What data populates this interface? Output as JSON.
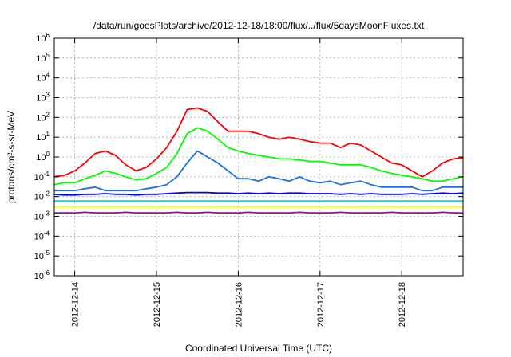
{
  "chart_data": {
    "type": "line",
    "title": "/data/run/goesPlots/archive/2012-12-18/18:00/flux/../flux/5daysMoonFluxes.txt",
    "xlabel": "Coordinated Universal Time (UTC)",
    "ylabel": "protons/cm²-s-sr-MeV",
    "yscale": "log",
    "ylim": [
      1e-06,
      1000000.0
    ],
    "xlim": [
      "2012-12-13T18:00",
      "2012-12-18T18:00"
    ],
    "grid": true,
    "legend": "none",
    "x_ticks": [
      "2012-12-14",
      "2012-12-15",
      "2012-12-16",
      "2012-12-17",
      "2012-12-18"
    ],
    "y_ticks": [
      {
        "value": 1e-06,
        "base": "10",
        "exp": "-6"
      },
      {
        "value": 1e-05,
        "base": "10",
        "exp": "-5"
      },
      {
        "value": 0.0001,
        "base": "10",
        "exp": "-4"
      },
      {
        "value": 0.001,
        "base": "10",
        "exp": "-3"
      },
      {
        "value": 0.01,
        "base": "10",
        "exp": "-2"
      },
      {
        "value": 0.1,
        "base": "10",
        "exp": "-1"
      },
      {
        "value": 1,
        "base": "10",
        "exp": "0"
      },
      {
        "value": 10,
        "base": "10",
        "exp": "1"
      },
      {
        "value": 100,
        "base": "10",
        "exp": "2"
      },
      {
        "value": 1000,
        "base": "10",
        "exp": "3"
      },
      {
        "value": 10000,
        "base": "10",
        "exp": "4"
      },
      {
        "value": 100000,
        "base": "10",
        "exp": "5"
      },
      {
        "value": 1000000,
        "base": "10",
        "exp": "6"
      }
    ],
    "x": [
      "2012-12-13T18:00",
      "2012-12-13T21:00",
      "2012-12-14T00:00",
      "2012-12-14T03:00",
      "2012-12-14T06:00",
      "2012-12-14T09:00",
      "2012-12-14T12:00",
      "2012-12-14T15:00",
      "2012-12-14T18:00",
      "2012-12-14T21:00",
      "2012-12-15T00:00",
      "2012-12-15T03:00",
      "2012-12-15T06:00",
      "2012-12-15T09:00",
      "2012-12-15T12:00",
      "2012-12-15T15:00",
      "2012-12-15T18:00",
      "2012-12-15T21:00",
      "2012-12-16T00:00",
      "2012-12-16T03:00",
      "2012-12-16T06:00",
      "2012-12-16T09:00",
      "2012-12-16T12:00",
      "2012-12-16T15:00",
      "2012-12-16T18:00",
      "2012-12-16T21:00",
      "2012-12-17T00:00",
      "2012-12-17T03:00",
      "2012-12-17T06:00",
      "2012-12-17T09:00",
      "2012-12-17T12:00",
      "2012-12-17T15:00",
      "2012-12-17T18:00",
      "2012-12-17T21:00",
      "2012-12-18T00:00",
      "2012-12-18T03:00",
      "2012-12-18T06:00",
      "2012-12-18T09:00",
      "2012-12-18T12:00",
      "2012-12-18T15:00",
      "2012-12-18T18:00"
    ],
    "series": [
      {
        "color": "#ff0000",
        "values": [
          0.1,
          0.12,
          0.2,
          0.5,
          1.5,
          2,
          1.2,
          0.4,
          0.2,
          0.3,
          0.8,
          3,
          20,
          250,
          300,
          200,
          60,
          20,
          20,
          20,
          15,
          10,
          8,
          10,
          8,
          6,
          5,
          5,
          3,
          5,
          4,
          2,
          1,
          0.5,
          0.4,
          0.2,
          0.1,
          0.2,
          0.5,
          0.8,
          0.9
        ]
      },
      {
        "color": "#00ff00",
        "values": [
          0.04,
          0.05,
          0.05,
          0.08,
          0.12,
          0.2,
          0.15,
          0.1,
          0.07,
          0.08,
          0.15,
          0.3,
          1.5,
          15,
          30,
          20,
          8,
          3,
          2,
          1.5,
          1.2,
          1,
          0.8,
          0.8,
          0.7,
          0.6,
          0.6,
          0.5,
          0.4,
          0.4,
          0.4,
          0.3,
          0.2,
          0.15,
          0.12,
          0.1,
          0.08,
          0.06,
          0.06,
          0.08,
          0.1
        ]
      },
      {
        "color": "#0000ff",
        "values": [
          0.013,
          0.012,
          0.012,
          0.013,
          0.013,
          0.014,
          0.013,
          0.013,
          0.012,
          0.013,
          0.013,
          0.014,
          0.015,
          0.016,
          0.016,
          0.016,
          0.015,
          0.015,
          0.014,
          0.015,
          0.014,
          0.015,
          0.014,
          0.015,
          0.015,
          0.014,
          0.014,
          0.014,
          0.013,
          0.014,
          0.013,
          0.014,
          0.013,
          0.013,
          0.013,
          0.014,
          0.013,
          0.014,
          0.015,
          0.014,
          0.015
        ]
      },
      {
        "color": "#1e6fe0",
        "values": [
          0.02,
          0.02,
          0.02,
          0.025,
          0.03,
          0.02,
          0.02,
          0.02,
          0.02,
          0.025,
          0.03,
          0.04,
          0.1,
          0.5,
          2,
          1,
          0.5,
          0.2,
          0.08,
          0.08,
          0.06,
          0.1,
          0.08,
          0.06,
          0.1,
          0.06,
          0.05,
          0.06,
          0.04,
          0.05,
          0.06,
          0.04,
          0.03,
          0.03,
          0.03,
          0.03,
          0.02,
          0.02,
          0.03,
          0.03,
          0.03
        ]
      },
      {
        "color": "#00d8d8",
        "values": [
          0.006,
          0.006,
          0.006,
          0.006,
          0.006,
          0.006,
          0.006,
          0.006,
          0.006,
          0.006,
          0.006,
          0.006,
          0.006,
          0.006,
          0.006,
          0.006,
          0.006,
          0.006,
          0.006,
          0.006,
          0.006,
          0.006,
          0.006,
          0.006,
          0.006,
          0.006,
          0.006,
          0.006,
          0.006,
          0.006,
          0.006,
          0.006,
          0.006,
          0.006,
          0.006,
          0.006,
          0.006,
          0.006,
          0.006,
          0.006,
          0.006
        ]
      },
      {
        "color": "#ffff00",
        "values": [
          0.003,
          0.003,
          0.003,
          0.003,
          0.003,
          0.003,
          0.003,
          0.003,
          0.003,
          0.003,
          0.003,
          0.003,
          0.003,
          0.003,
          0.003,
          0.003,
          0.003,
          0.003,
          0.003,
          0.003,
          0.003,
          0.003,
          0.003,
          0.003,
          0.003,
          0.003,
          0.003,
          0.003,
          0.003,
          0.003,
          0.003,
          0.003,
          0.003,
          0.003,
          0.003,
          0.003,
          0.003,
          0.003,
          0.003,
          0.003,
          0.003
        ]
      },
      {
        "color": "#8b1a7a",
        "values": [
          0.0015,
          0.0015,
          0.0015,
          0.0016,
          0.0015,
          0.0015,
          0.0015,
          0.0016,
          0.0015,
          0.0015,
          0.0015,
          0.0015,
          0.0016,
          0.0015,
          0.0015,
          0.0016,
          0.0015,
          0.0015,
          0.0015,
          0.0016,
          0.0015,
          0.0015,
          0.0015,
          0.0015,
          0.0016,
          0.0015,
          0.0015,
          0.0015,
          0.0016,
          0.0015,
          0.0015,
          0.0015,
          0.0015,
          0.0016,
          0.0015,
          0.0015,
          0.0015,
          0.0015,
          0.0016,
          0.0015,
          0.0015
        ]
      }
    ]
  }
}
